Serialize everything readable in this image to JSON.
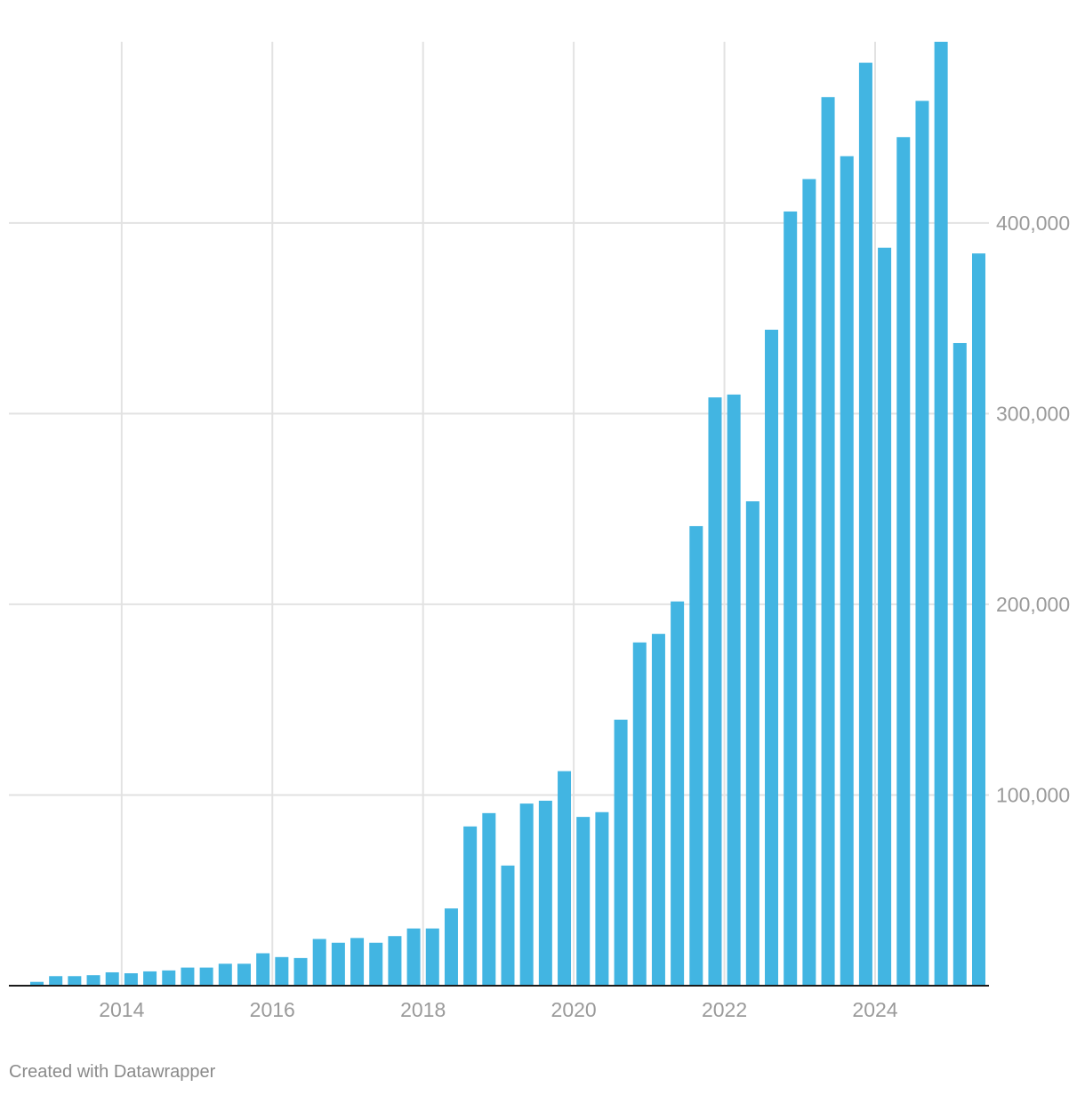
{
  "chart_data": {
    "type": "bar",
    "title": "",
    "xlabel": "",
    "ylabel": "",
    "ylim": [
      0,
      495000
    ],
    "x_ticks": [
      "2014",
      "2016",
      "2018",
      "2020",
      "2022",
      "2024"
    ],
    "y_ticks": [
      {
        "value": 100000,
        "label": "100,000"
      },
      {
        "value": 200000,
        "label": "200,000"
      },
      {
        "value": 300000,
        "label": "300,000"
      },
      {
        "value": 400000,
        "label": "400,000"
      }
    ],
    "categories": [
      "Q4 2012",
      "Q1 2013",
      "Q2 2013",
      "Q3 2013",
      "Q4 2013",
      "Q1 2014",
      "Q2 2014",
      "Q3 2014",
      "Q4 2014",
      "Q1 2015",
      "Q2 2015",
      "Q3 2015",
      "Q4 2015",
      "Q1 2016",
      "Q2 2016",
      "Q3 2016",
      "Q4 2016",
      "Q1 2017",
      "Q2 2017",
      "Q3 2017",
      "Q4 2017",
      "Q1 2018",
      "Q2 2018",
      "Q3 2018",
      "Q4 2018",
      "Q1 2019",
      "Q2 2019",
      "Q3 2019",
      "Q4 2019",
      "Q1 2020",
      "Q2 2020",
      "Q3 2020",
      "Q4 2020",
      "Q1 2021",
      "Q2 2021",
      "Q3 2021",
      "Q4 2021",
      "Q1 2022",
      "Q2 2022",
      "Q3 2022",
      "Q4 2022",
      "Q1 2023",
      "Q2 2023",
      "Q3 2023",
      "Q4 2023",
      "Q1 2024",
      "Q2 2024",
      "Q3 2024",
      "Q4 2024",
      "Q1 2025",
      "Q2 2025"
    ],
    "values": [
      2000,
      5000,
      5000,
      5500,
      7000,
      6500,
      7500,
      8000,
      9500,
      9500,
      11500,
      11500,
      17000,
      15000,
      14500,
      24500,
      22500,
      25000,
      22500,
      26000,
      30000,
      30000,
      40500,
      83500,
      90500,
      63000,
      95500,
      97000,
      112500,
      88500,
      91000,
      139500,
      180000,
      184500,
      201500,
      241000,
      308500,
      310000,
      254000,
      344000,
      406000,
      423000,
      466000,
      435000,
      484000,
      387000,
      445000,
      464000,
      495000,
      337000,
      384000
    ],
    "color": "#42b5e2"
  },
  "footer": {
    "credit": "Created with Datawrapper"
  }
}
